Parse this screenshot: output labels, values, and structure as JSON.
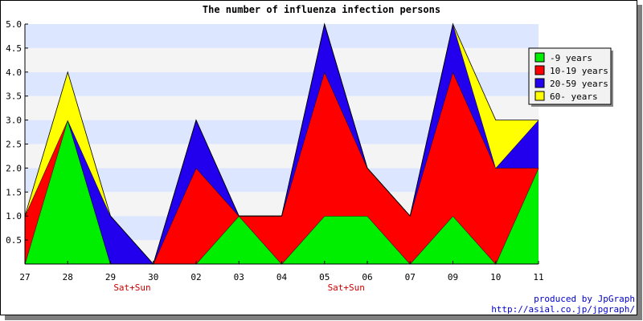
{
  "chart_data": {
    "type": "area",
    "stacked": true,
    "title": "The number of influenza infection persons",
    "categories": [
      "27",
      "28",
      "29",
      "30",
      "02",
      "03",
      "04",
      "05",
      "06",
      "07",
      "09",
      "10",
      "11"
    ],
    "weekend_notes": [
      {
        "category": "29",
        "label": "Sat+Sun"
      },
      {
        "category": "05",
        "label": "Sat+Sun"
      }
    ],
    "series": [
      {
        "name": "-9 years",
        "color": "#00ee00",
        "values": [
          0,
          3,
          0,
          0,
          0,
          1,
          0,
          1,
          1,
          0,
          1,
          0,
          2
        ]
      },
      {
        "name": "10-19 years",
        "color": "#ff0000",
        "values": [
          1,
          0,
          0,
          0,
          2,
          0,
          1,
          3,
          1,
          1,
          3,
          2,
          0
        ]
      },
      {
        "name": "20-59 years",
        "color": "#2200ee",
        "values": [
          0,
          0,
          1,
          0,
          1,
          0,
          0,
          1,
          0,
          0,
          1,
          0,
          1
        ]
      },
      {
        "name": "60- years",
        "color": "#ffff00",
        "values": [
          0,
          1,
          0,
          0,
          0,
          0,
          0,
          0,
          0,
          0,
          0,
          1,
          0
        ]
      }
    ],
    "y_ticks": [
      "0.5",
      "1.0",
      "1.5",
      "2.0",
      "2.5",
      "3.0",
      "3.5",
      "4.0",
      "4.5",
      "5.0"
    ],
    "ylim": [
      0,
      5
    ],
    "grid": "horizontal alternating bands",
    "band_colors": [
      "#f4f4f4",
      "#dde6ff"
    ],
    "legend_position": "top-right"
  },
  "credits": {
    "line1": "produced by JpGraph",
    "line2": "http://asial.co.jp/jpgraph/"
  }
}
